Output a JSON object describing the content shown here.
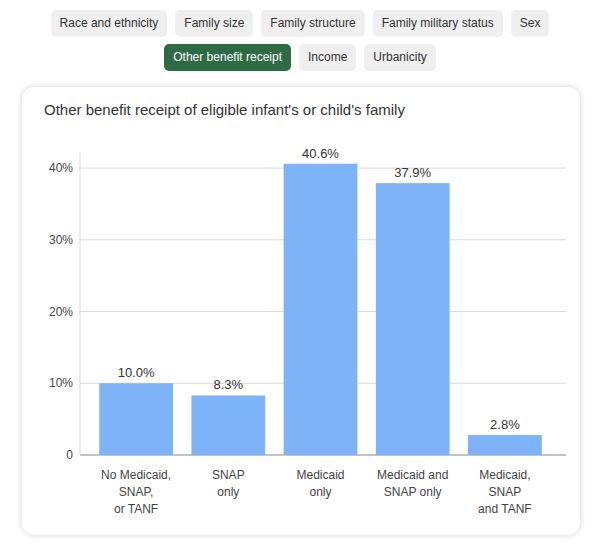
{
  "tabs": {
    "items": [
      "Race and ethnicity",
      "Family size",
      "Family structure",
      "Family military status",
      "Sex",
      "Other benefit receipt",
      "Income",
      "Urbanicity"
    ],
    "active": 5
  },
  "chart_data": {
    "type": "bar",
    "title": "Other benefit receipt of eligible infant's or child's family",
    "categories": [
      "No Medicaid,\nSNAP,\nor TANF",
      "SNAP\nonly",
      "Medicaid\nonly",
      "Medicaid and\nSNAP only",
      "Medicaid,\nSNAP\nand TANF"
    ],
    "values": [
      10.0,
      8.3,
      40.6,
      37.9,
      2.8
    ],
    "value_labels": [
      "10.0%",
      "8.3%",
      "40.6%",
      "37.9%",
      "2.8%"
    ],
    "color": "#7fb3f7",
    "ylim": [
      0,
      42
    ],
    "yticks": [
      0,
      {
        "value": 10,
        "label": "10%"
      },
      {
        "value": 20,
        "label": "20%"
      },
      {
        "value": 30,
        "label": "30%"
      },
      {
        "value": 40,
        "label": "40%"
      }
    ],
    "grid": true,
    "data_labels": true
  }
}
